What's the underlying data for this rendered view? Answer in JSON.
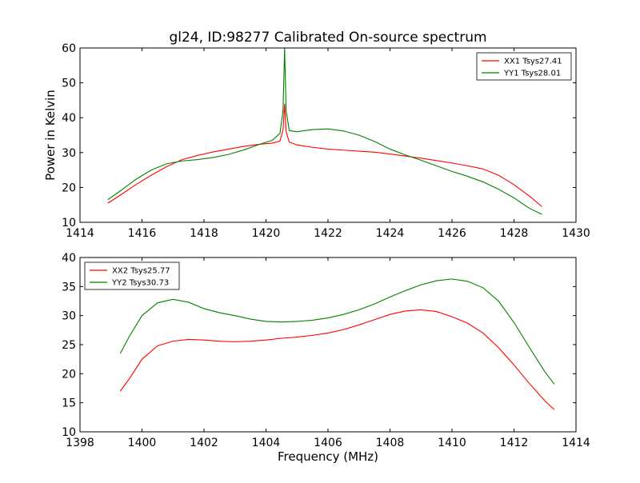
{
  "figure": {
    "title": "gl24, ID:98277 Calibrated On-source spectrum",
    "ylabel": "Power in Kelvin",
    "xlabel": "Frequency (MHz)"
  },
  "chart_data": [
    {
      "type": "line",
      "xlim": [
        1414,
        1430
      ],
      "ylim": [
        10,
        60
      ],
      "xticks": [
        1414,
        1416,
        1418,
        1420,
        1422,
        1424,
        1426,
        1428,
        1430
      ],
      "yticks": [
        10,
        20,
        30,
        40,
        50,
        60
      ],
      "grid": false,
      "legend": "top-right",
      "series": [
        {
          "name": "XX1 Tsys27.41",
          "color": "#ff0000",
          "x": [
            1414.9,
            1415.3,
            1415.8,
            1416.3,
            1416.8,
            1417.3,
            1417.8,
            1418.3,
            1418.8,
            1419.3,
            1419.8,
            1420.2,
            1420.45,
            1420.55,
            1420.6,
            1420.65,
            1420.75,
            1421.0,
            1421.5,
            1422.0,
            1422.5,
            1423.0,
            1423.5,
            1424.0,
            1424.5,
            1425.0,
            1425.5,
            1426.0,
            1426.5,
            1427.0,
            1427.5,
            1428.0,
            1428.5,
            1428.9
          ],
          "y": [
            15.5,
            17.8,
            20.8,
            23.5,
            26.0,
            28.0,
            29.2,
            30.2,
            31.0,
            31.8,
            32.4,
            32.7,
            33.3,
            36.5,
            44.0,
            36.0,
            33.0,
            32.2,
            31.5,
            31.0,
            30.7,
            30.4,
            30.1,
            29.6,
            29.0,
            28.4,
            27.7,
            27.0,
            26.2,
            25.3,
            23.5,
            20.8,
            17.5,
            14.5
          ]
        },
        {
          "name": "YY1 Tsys28.01",
          "color": "#008000",
          "x": [
            1414.9,
            1415.3,
            1415.8,
            1416.3,
            1416.8,
            1417.3,
            1417.8,
            1418.3,
            1418.8,
            1419.3,
            1419.8,
            1420.2,
            1420.45,
            1420.55,
            1420.6,
            1420.65,
            1420.75,
            1421.0,
            1421.5,
            1422.0,
            1422.5,
            1423.0,
            1423.5,
            1424.0,
            1424.5,
            1425.0,
            1425.5,
            1426.0,
            1426.5,
            1427.0,
            1427.5,
            1428.0,
            1428.5,
            1428.9
          ],
          "y": [
            16.5,
            19.0,
            22.3,
            25.0,
            26.8,
            27.6,
            28.0,
            28.6,
            29.5,
            30.8,
            32.4,
            33.5,
            35.5,
            42.0,
            60.0,
            42.0,
            36.3,
            36.0,
            36.6,
            36.8,
            36.2,
            35.0,
            33.2,
            31.0,
            29.3,
            27.8,
            26.2,
            24.6,
            23.2,
            21.6,
            19.5,
            17.0,
            14.0,
            12.3
          ]
        }
      ]
    },
    {
      "type": "line",
      "xlim": [
        1398,
        1414
      ],
      "ylim": [
        10,
        40
      ],
      "xticks": [
        1398,
        1400,
        1402,
        1404,
        1406,
        1408,
        1410,
        1412,
        1414
      ],
      "yticks": [
        10,
        15,
        20,
        25,
        30,
        35,
        40
      ],
      "grid": false,
      "legend": "top-left",
      "series": [
        {
          "name": "XX2 Tsys25.77",
          "color": "#ff0000",
          "x": [
            1399.3,
            1399.6,
            1400.0,
            1400.5,
            1401.0,
            1401.5,
            1402.0,
            1402.5,
            1403.0,
            1403.5,
            1404.0,
            1404.5,
            1405.0,
            1405.5,
            1406.0,
            1406.5,
            1407.0,
            1407.5,
            1408.0,
            1408.5,
            1409.0,
            1409.5,
            1410.0,
            1410.5,
            1411.0,
            1411.5,
            1412.0,
            1412.5,
            1413.0,
            1413.3
          ],
          "y": [
            17.0,
            19.2,
            22.5,
            24.8,
            25.6,
            25.9,
            25.8,
            25.6,
            25.5,
            25.6,
            25.8,
            26.1,
            26.3,
            26.6,
            27.0,
            27.6,
            28.4,
            29.3,
            30.2,
            30.8,
            31.0,
            30.7,
            29.8,
            28.7,
            27.0,
            24.5,
            21.5,
            18.3,
            15.3,
            13.8
          ]
        },
        {
          "name": "YY2 Tsys30.73",
          "color": "#008000",
          "x": [
            1399.3,
            1399.6,
            1400.0,
            1400.5,
            1401.0,
            1401.5,
            1402.0,
            1402.5,
            1403.0,
            1403.5,
            1404.0,
            1404.5,
            1405.0,
            1405.5,
            1406.0,
            1406.5,
            1407.0,
            1407.5,
            1408.0,
            1408.5,
            1409.0,
            1409.5,
            1410.0,
            1410.5,
            1411.0,
            1411.5,
            1412.0,
            1412.5,
            1413.0,
            1413.3
          ],
          "y": [
            23.5,
            26.5,
            30.0,
            32.2,
            32.8,
            32.3,
            31.2,
            30.5,
            30.0,
            29.4,
            29.0,
            28.9,
            29.0,
            29.2,
            29.6,
            30.2,
            31.0,
            32.0,
            33.2,
            34.3,
            35.3,
            36.0,
            36.3,
            35.9,
            34.8,
            32.5,
            28.8,
            24.5,
            20.3,
            18.2
          ]
        }
      ]
    }
  ]
}
